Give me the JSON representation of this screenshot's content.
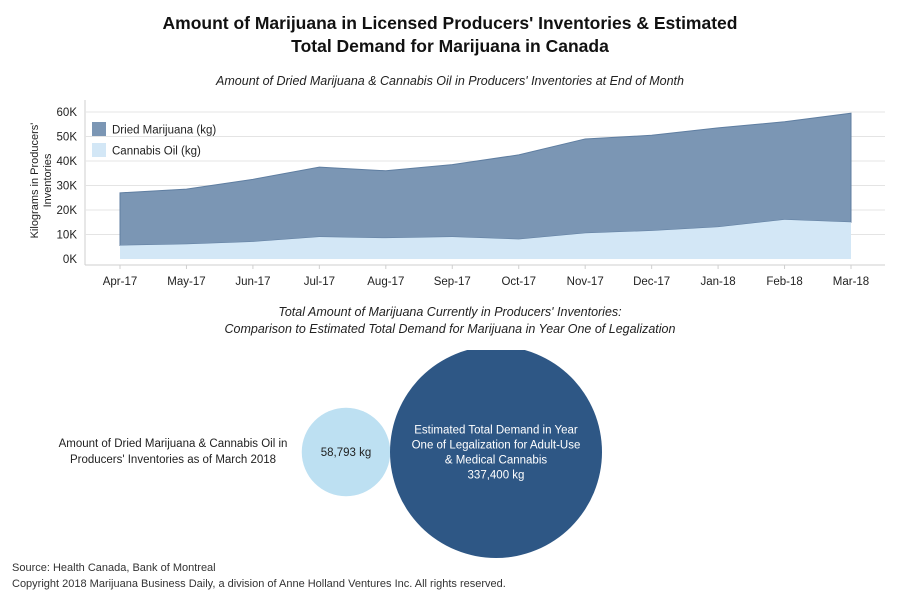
{
  "title_lines": [
    "Amount of Marijuana in Licensed Producers' Inventories & Estimated",
    "Total Demand for Marijuana in Canada"
  ],
  "chart_data": [
    {
      "type": "area",
      "title": "Amount of Dried Marijuana & Cannabis Oil in Producers' Inventories at End of Month",
      "ylabel": "Kilograms in Producers' Inventories",
      "ylabel_lines": [
        "Kilograms in Producers'",
        "Inventories"
      ],
      "xlabel": "",
      "categories": [
        "Apr-17",
        "May-17",
        "Jun-17",
        "Jul-17",
        "Aug-17",
        "Sep-17",
        "Oct-17",
        "Nov-17",
        "Dec-17",
        "Jan-18",
        "Feb-18",
        "Mar-18"
      ],
      "ylim": [
        0,
        60000
      ],
      "yticks": [
        0,
        10000,
        20000,
        30000,
        40000,
        50000,
        60000
      ],
      "ytick_labels": [
        "0K",
        "10K",
        "20K",
        "30K",
        "40K",
        "50K",
        "60K"
      ],
      "stacked": true,
      "grid": true,
      "legend_position": "top-left",
      "series": [
        {
          "name": "Cannabis Oil (kg)",
          "color": "#d3e7f6",
          "values": [
            5500,
            6000,
            7000,
            9000,
            8500,
            9000,
            8000,
            10500,
            11500,
            13000,
            16000,
            15000
          ]
        },
        {
          "name": "Dried Marijuana (kg)",
          "color": "#7b96b4",
          "values": [
            21500,
            22500,
            25500,
            28500,
            27500,
            29500,
            34500,
            38500,
            39000,
            40500,
            40000,
            44500
          ]
        }
      ],
      "totals": [
        27000,
        28500,
        32500,
        37500,
        36000,
        38500,
        42500,
        49000,
        50500,
        53500,
        56000,
        59500
      ]
    },
    {
      "type": "bubble",
      "title": "Total Amount of Marijuana Currently in Producers' Inventories: Comparison to Estimated Total Demand for Marijuana in Year One of Legalization",
      "title_lines": [
        "Total Amount of Marijuana Currently in Producers' Inventories:",
        "Comparison to Estimated Total Demand for Marijuana in Year One of Legalization"
      ],
      "bubbles": [
        {
          "name": "Amount of Dried Marijuana & Cannabis Oil in Producers' Inventories as of March 2018",
          "name_lines": [
            "Amount of Dried Marijuana & Cannabis Oil in",
            "Producers' Inventories as of March 2018"
          ],
          "value": 58793,
          "label": "58,793 kg",
          "color": "#bde0f2",
          "text_color": "#222222"
        },
        {
          "name": "Estimated Total Demand in Year One of Legalization for Adult-Use & Medical Cannabis",
          "label_lines": [
            "Estimated Total Demand in Year",
            "One of Legalization for Adult-Use",
            "& Medical Cannabis",
            "337,400 kg"
          ],
          "value": 337400,
          "label": "337,400 kg",
          "color": "#2e5785",
          "text_color": "#ffffff"
        }
      ]
    }
  ],
  "footer": {
    "source": "Source: Health Canada, Bank of Montreal",
    "copyright": "Copyright 2018 Marijuana Business Daily, a division of Anne Holland Ventures Inc. All rights reserved."
  }
}
